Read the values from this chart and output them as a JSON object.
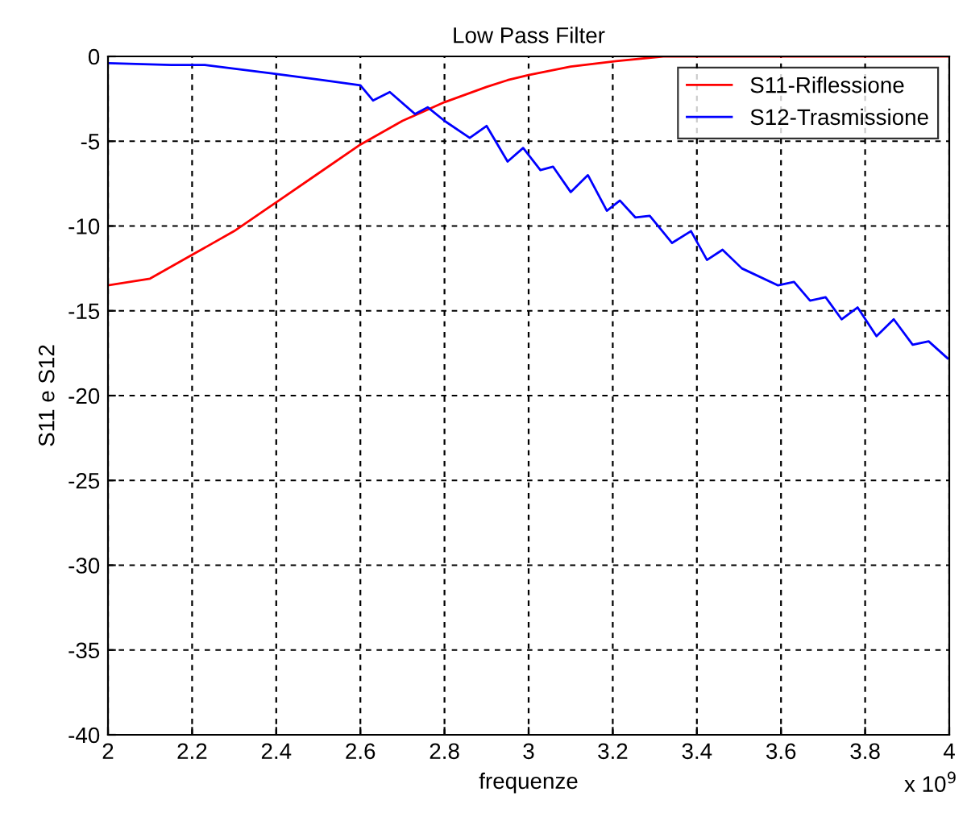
{
  "chart_data": {
    "type": "line",
    "title": "Low Pass Filter",
    "xlabel": "frequenze",
    "ylabel": "S11 e S12",
    "annotations": [
      "x 10$^{9}$"
    ],
    "xlim": [
      2,
      4
    ],
    "xticks": [
      2,
      2.2,
      2.4,
      2.6,
      2.8,
      3,
      3.2,
      3.4,
      3.6,
      3.8,
      4
    ],
    "ylim": [
      -40,
      0
    ],
    "yticks": [
      -40,
      -35,
      -30,
      -25,
      -20,
      -15,
      -10,
      -5,
      0
    ],
    "grid": true,
    "legend": "top right",
    "line_style": "solid",
    "marker": "none",
    "series": [
      {
        "name": "S11-Riflessione",
        "color": "#ff0000",
        "x": [
          2,
          2.1,
          2.2,
          2.3,
          2.4,
          2.5,
          2.6,
          2.7,
          2.8,
          2.9,
          2.95,
          3.0,
          3.1,
          3.2,
          3.32,
          4.0
        ],
        "values": [
          -13.5,
          -13.1,
          -11.7,
          -10.3,
          -8.6,
          -6.9,
          -5.2,
          -3.8,
          -2.7,
          -1.8,
          -1.4,
          -1.1,
          -0.6,
          -0.3,
          0,
          0
        ]
      },
      {
        "name": "S12-Trasmissione",
        "color": "#0000ff",
        "x": [
          2.0,
          2.15,
          2.23,
          2.39,
          2.51,
          2.6,
          2.63,
          2.67,
          2.73,
          2.76,
          2.8,
          2.86,
          2.9,
          2.95,
          2.987,
          3.028,
          3.058,
          3.1,
          3.141,
          3.186,
          3.217,
          3.254,
          3.288,
          3.341,
          3.386,
          3.424,
          3.461,
          3.507,
          3.593,
          3.631,
          3.669,
          3.706,
          3.744,
          3.782,
          3.827,
          3.868,
          3.913,
          3.951,
          3.996
        ],
        "values": [
          -0.4,
          -0.5,
          -0.5,
          -1.0,
          -1.4,
          -1.7,
          -2.6,
          -2.1,
          -3.4,
          -3.0,
          -3.8,
          -4.8,
          -4.1,
          -6.2,
          -5.4,
          -6.7,
          -6.5,
          -8.0,
          -7.0,
          -9.1,
          -8.5,
          -9.5,
          -9.4,
          -11.0,
          -10.3,
          -12.0,
          -11.4,
          -12.5,
          -13.5,
          -13.3,
          -14.4,
          -14.2,
          -15.5,
          -14.8,
          -16.5,
          -15.5,
          -17.0,
          -16.8,
          -17.8
        ]
      }
    ]
  }
}
